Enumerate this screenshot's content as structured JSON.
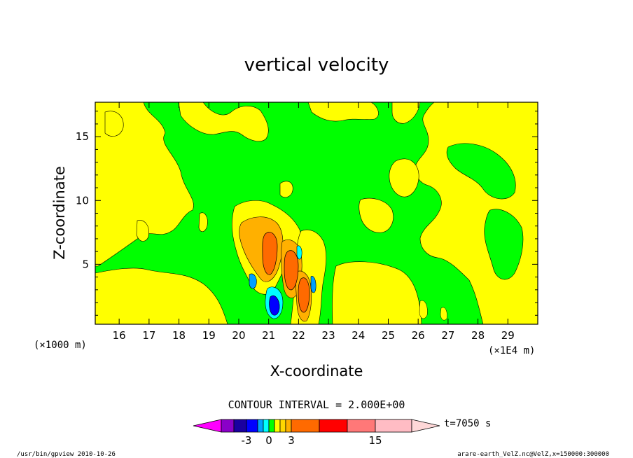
{
  "chart_data": {
    "type": "heatmap",
    "title": "vertical velocity",
    "xlabel": "X-coordinate",
    "ylabel": "Z-coordinate",
    "x_unit_left": "(×1000 m)",
    "x_unit_right": "(×1E4 m)",
    "xlim": [
      15.2,
      30.0
    ],
    "ylim": [
      0.3,
      17.7
    ],
    "x_ticks": [
      "16",
      "17",
      "18",
      "19",
      "20",
      "21",
      "22",
      "23",
      "24",
      "25",
      "26",
      "27",
      "28",
      "29"
    ],
    "x_tick_values": [
      16,
      17,
      18,
      19,
      20,
      21,
      22,
      23,
      24,
      25,
      26,
      27,
      28,
      29
    ],
    "y_ticks": [
      "5",
      "10",
      "15"
    ],
    "y_tick_values": [
      5,
      10,
      15
    ],
    "contour_interval_text": "CONTOUR INTERVAL = 2.000E+00",
    "colorbar": {
      "labels": [
        "-3",
        "0",
        "3",
        "15"
      ],
      "label_values": [
        -3,
        0,
        3,
        15
      ],
      "colors": [
        "#ff00ff",
        "#8a00c8",
        "#1a00a0",
        "#0000ff",
        "#00a0ff",
        "#00ffff",
        "#00ff00",
        "#ffff00",
        "#ffd800",
        "#ffb000",
        "#ff6a00",
        "#ff0000",
        "#ff7878",
        "#ffbcc4",
        "#ffd8d8"
      ]
    },
    "time_label": "t=7050 s",
    "features": [
      {
        "name": "updraft-core-1",
        "x": 20.85,
        "z": 6.0,
        "level": "orange"
      },
      {
        "name": "updraft-core-2",
        "x": 21.65,
        "z": 4.0,
        "level": "orange"
      },
      {
        "name": "updraft-core-3",
        "x": 22.1,
        "z": 2.2,
        "level": "orange"
      },
      {
        "name": "downdraft-core",
        "x": 21.15,
        "z": 1.5,
        "level": "blue"
      }
    ]
  },
  "footer": {
    "left": "/usr/bin/gpview  2010-10-26",
    "right": "arare-earth_VelZ.nc@VelZ,x=150000:300000"
  }
}
